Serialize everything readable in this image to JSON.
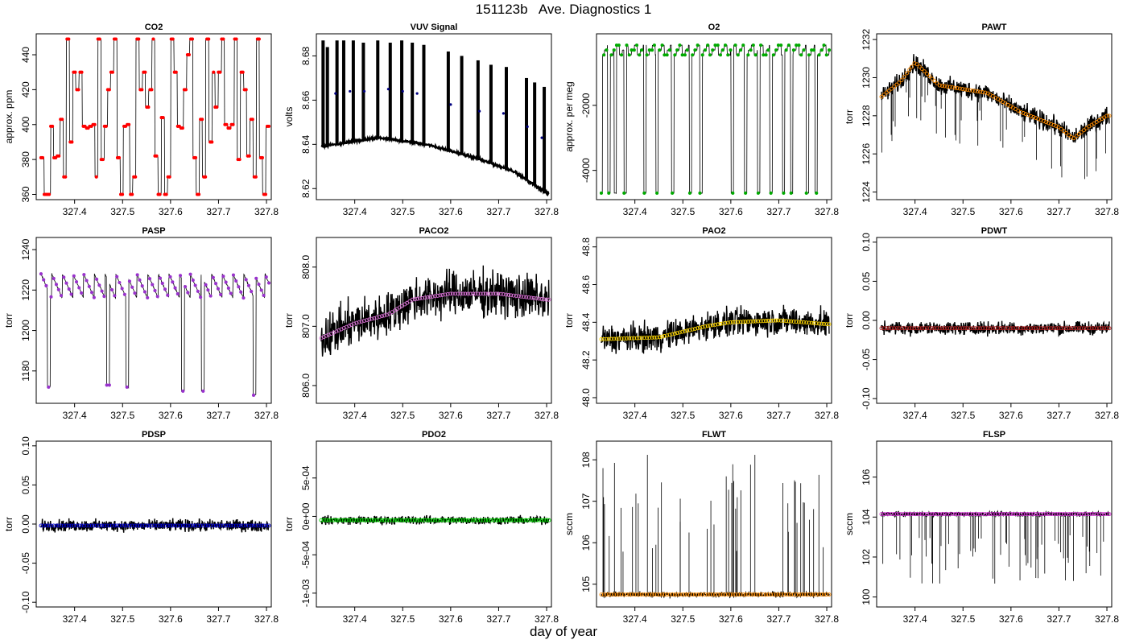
{
  "page": {
    "title": "151123b   Ave. Diagnostics 1",
    "xlabel": "day of year"
  },
  "colors": {
    "frame": "#000000",
    "trace": "#000000"
  },
  "chart_data": [
    {
      "type": "line",
      "title": "CO2",
      "ylabel": "approx. ppm",
      "xlim": [
        327.32,
        327.81
      ],
      "ylim": [
        357,
        452
      ],
      "xticks": [
        "327.4",
        "327.5",
        "327.6",
        "327.7",
        "327.8"
      ],
      "yticks": [
        "360",
        "380",
        "400",
        "420",
        "440"
      ],
      "marker_color": "#ff0000",
      "noise": 0.3,
      "spikes": 0,
      "pattern": "steps",
      "levels": [
        381,
        360,
        360,
        399,
        381,
        382,
        403,
        370,
        449,
        390,
        430,
        420,
        430,
        399,
        398,
        399,
        400,
        370,
        449,
        380,
        399,
        420,
        430,
        449,
        381,
        360,
        399,
        400,
        360,
        370,
        449,
        420,
        430,
        410,
        420,
        449,
        382,
        360,
        404,
        360,
        370,
        449,
        430,
        399,
        398,
        420,
        440,
        449,
        381,
        360,
        403,
        370,
        449,
        390,
        430,
        410,
        430,
        449,
        400,
        398,
        400,
        449,
        380,
        430,
        420,
        382,
        403,
        370,
        449,
        381,
        360,
        399
      ]
    },
    {
      "type": "line",
      "title": "VUV Signal",
      "ylabel": "volts",
      "xlim": [
        327.32,
        327.81
      ],
      "ylim": [
        8.615,
        8.69
      ],
      "xticks": [
        "327.4",
        "327.5",
        "327.6",
        "327.7",
        "327.8"
      ],
      "yticks": [
        "8.62",
        "8.64",
        "8.66",
        "8.68"
      ],
      "marker_color": "#000080",
      "noise": 0.0008,
      "spikes": 0,
      "pattern": "vuv",
      "trend": [
        [
          327.33,
          8.639
        ],
        [
          327.45,
          8.643
        ],
        [
          327.55,
          8.64
        ],
        [
          327.65,
          8.634
        ],
        [
          327.73,
          8.628
        ],
        [
          327.8,
          8.618
        ]
      ],
      "spike_x": [
        327.334,
        327.343,
        327.363,
        327.377,
        327.397,
        327.418,
        327.448,
        327.474,
        327.498,
        327.52,
        327.544,
        327.595,
        327.623,
        327.657,
        327.684,
        327.716,
        327.758,
        327.775,
        327.795
      ],
      "spike_top": [
        8.687,
        8.684,
        8.687,
        8.687,
        8.687,
        8.686,
        8.687,
        8.686,
        8.687,
        8.686,
        8.685,
        8.682,
        8.68,
        8.678,
        8.676,
        8.675,
        8.67,
        8.668,
        8.666
      ],
      "blue_high": [
        [
          327.36,
          8.663
        ],
        [
          327.39,
          8.664
        ],
        [
          327.42,
          8.664
        ],
        [
          327.47,
          8.665
        ],
        [
          327.5,
          8.664
        ],
        [
          327.53,
          8.663
        ],
        [
          327.6,
          8.658
        ],
        [
          327.66,
          8.655
        ],
        [
          327.71,
          8.654
        ],
        [
          327.76,
          8.648
        ],
        [
          327.79,
          8.643
        ]
      ]
    },
    {
      "type": "line",
      "title": "O2",
      "ylabel": "approx. per meg",
      "xlim": [
        327.32,
        327.81
      ],
      "ylim": [
        -4900,
        200
      ],
      "xticks": [
        "327.4",
        "327.5",
        "327.6",
        "327.7",
        "327.8"
      ],
      "yticks": [
        "-4000",
        "-2000"
      ],
      "marker_color": "#00aa00",
      "noise": 10,
      "spikes": 0,
      "pattern": "o2",
      "base": -300,
      "dip": -4700,
      "dip_x": [
        327.33,
        327.346,
        327.359,
        327.38,
        327.421,
        327.446,
        327.479,
        327.516,
        327.538,
        327.603,
        327.631,
        327.658,
        327.684,
        327.71,
        327.727,
        327.76,
        327.778
      ]
    },
    {
      "type": "line",
      "title": "PAWT",
      "ylabel": "torr",
      "xlim": [
        327.32,
        327.81
      ],
      "ylim": [
        1223.6,
        1232.3
      ],
      "xticks": [
        "327.4",
        "327.5",
        "327.6",
        "327.7",
        "327.8"
      ],
      "yticks": [
        "1224",
        "1226",
        "1228",
        "1230",
        "1232"
      ],
      "marker_color": "#ff8c00",
      "noise": 0.7,
      "spikes": 40,
      "spike_dir": -1,
      "spike_mag": 3,
      "pattern": "trend",
      "trend": [
        [
          327.33,
          1229.0
        ],
        [
          327.37,
          1229.8
        ],
        [
          327.4,
          1230.8
        ],
        [
          327.45,
          1229.6
        ],
        [
          327.55,
          1229.2
        ],
        [
          327.62,
          1228.2
        ],
        [
          327.7,
          1227.4
        ],
        [
          327.73,
          1226.8
        ],
        [
          327.76,
          1227.4
        ],
        [
          327.8,
          1228.0
        ]
      ]
    },
    {
      "type": "line",
      "title": "PASP",
      "ylabel": "torr",
      "xlim": [
        327.32,
        327.81
      ],
      "ylim": [
        1164,
        1246
      ],
      "xticks": [
        "327.4",
        "327.5",
        "327.6",
        "327.7",
        "327.8"
      ],
      "yticks": [
        "1180",
        "1200",
        "1220",
        "1240"
      ],
      "marker_color": "#9932cc",
      "noise": 0.6,
      "spikes": 0,
      "pattern": "pasp",
      "base": 1222,
      "dips": [
        [
          327.346,
          1172
        ],
        [
          327.47,
          1173
        ],
        [
          327.51,
          1172
        ],
        [
          327.626,
          1170
        ],
        [
          327.667,
          1170
        ],
        [
          327.775,
          1168
        ]
      ]
    },
    {
      "type": "line",
      "title": "PACO2",
      "ylabel": "torr",
      "xlim": [
        327.32,
        327.81
      ],
      "ylim": [
        805.7,
        808.5
      ],
      "xticks": [
        "327.4",
        "327.5",
        "327.6",
        "327.7",
        "327.8"
      ],
      "yticks": [
        "806.0",
        "807.0",
        "808.0"
      ],
      "marker_color": "#da70d6",
      "noise": 0.55,
      "spikes": 0,
      "pattern": "trend",
      "trend": [
        [
          327.33,
          806.8
        ],
        [
          327.4,
          807.05
        ],
        [
          327.47,
          807.2
        ],
        [
          327.52,
          807.45
        ],
        [
          327.6,
          807.55
        ],
        [
          327.7,
          807.55
        ],
        [
          327.8,
          807.45
        ]
      ]
    },
    {
      "type": "line",
      "title": "PAO2",
      "ylabel": "torr",
      "xlim": [
        327.32,
        327.81
      ],
      "ylim": [
        47.97,
        48.85
      ],
      "xticks": [
        "327.4",
        "327.5",
        "327.6",
        "327.7",
        "327.8"
      ],
      "yticks": [
        "48.0",
        "48.2",
        "48.4",
        "48.6",
        "48.8"
      ],
      "marker_color": "#ffd700",
      "noise": 0.11,
      "spikes": 0,
      "pattern": "trend",
      "trend": [
        [
          327.33,
          48.31
        ],
        [
          327.45,
          48.32
        ],
        [
          327.5,
          48.35
        ],
        [
          327.55,
          48.38
        ],
        [
          327.6,
          48.4
        ],
        [
          327.7,
          48.41
        ],
        [
          327.8,
          48.39
        ]
      ]
    },
    {
      "type": "line",
      "title": "PDWT",
      "ylabel": "torr",
      "xlim": [
        327.32,
        327.81
      ],
      "ylim": [
        -0.106,
        0.106
      ],
      "xticks": [
        "327.4",
        "327.5",
        "327.6",
        "327.7",
        "327.8"
      ],
      "yticks": [
        "-0.10",
        "-0.05",
        "0.00",
        "0.05",
        "0.10"
      ],
      "marker_color": "#b22222",
      "noise": 0.012,
      "spikes": 0,
      "pattern": "flat",
      "base": -0.01
    },
    {
      "type": "line",
      "title": "PDSP",
      "ylabel": "torr",
      "xlim": [
        327.32,
        327.81
      ],
      "ylim": [
        -0.106,
        0.106
      ],
      "xticks": [
        "327.4",
        "327.5",
        "327.6",
        "327.7",
        "327.8"
      ],
      "yticks": [
        "-0.10",
        "-0.05",
        "0.00",
        "0.05",
        "0.10"
      ],
      "marker_color": "#0000cd",
      "noise": 0.011,
      "spikes": 0,
      "pattern": "flat",
      "base": -0.002
    },
    {
      "type": "line",
      "title": "PDO2",
      "ylabel": "torr",
      "xlim": [
        327.32,
        327.81
      ],
      "ylim": [
        -0.00118,
        0.00098
      ],
      "xticks": [
        "327.4",
        "327.5",
        "327.6",
        "327.7",
        "327.8"
      ],
      "yticks": [
        "-1e-03",
        "-5e-04",
        "0e+00",
        "5e-04"
      ],
      "marker_color": "#00dd00",
      "noise": 8e-05,
      "spikes": 0,
      "pattern": "flat",
      "base": -5e-05
    },
    {
      "type": "line",
      "title": "FLWT",
      "ylabel": "sccm",
      "xlim": [
        327.32,
        327.81
      ],
      "ylim": [
        104.45,
        108.45
      ],
      "xticks": [
        "327.4",
        "327.5",
        "327.6",
        "327.7",
        "327.8"
      ],
      "yticks": [
        "105",
        "106",
        "107",
        "108"
      ],
      "marker_color": "#ff8c00",
      "noise": 0.08,
      "spikes": 45,
      "spike_dir": 1,
      "spike_mag": 3.4,
      "pattern": "flat",
      "base": 104.75
    },
    {
      "type": "line",
      "title": "FLSP",
      "ylabel": "sccm",
      "xlim": [
        327.32,
        327.81
      ],
      "ylim": [
        99.5,
        107.8
      ],
      "xticks": [
        "327.4",
        "327.5",
        "327.6",
        "327.7",
        "327.8"
      ],
      "yticks": [
        "100",
        "102",
        "104",
        "106"
      ],
      "marker_color": "#cc33cc",
      "noise": 0.15,
      "spikes": 60,
      "spike_dir": -1,
      "spike_mag": 3.5,
      "pattern": "flat",
      "base": 104.15
    }
  ]
}
